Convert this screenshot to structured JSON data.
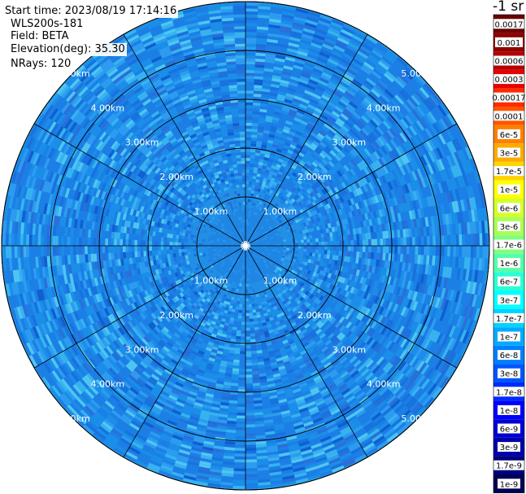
{
  "info": {
    "start_time": "Start time: 2023/08/19 17:14:16",
    "device": "WLS200s-181",
    "field": "Field: BETA",
    "elevation": "Elevation(deg): 35.30",
    "nrays": "NRays: 120"
  },
  "colorbar": {
    "units": "-1 sr",
    "labels": [
      "0.0017",
      "0.001",
      "0.0006",
      "0.0003",
      "0.00017",
      "0.0001",
      "6e-5",
      "3e-5",
      "1.7e-5",
      "1e-5",
      "6e-6",
      "3e-6",
      "1.7e-6",
      "1e-6",
      "6e-7",
      "3e-7",
      "1.7e-7",
      "1e-7",
      "6e-8",
      "3e-8",
      "1.7e-8",
      "1e-8",
      "6e-9",
      "3e-9",
      "1.7e-9",
      "1e-9"
    ],
    "colors": [
      "#6a0000",
      "#8f0000",
      "#b40000",
      "#e60000",
      "#ff2a00",
      "#ff5500",
      "#ff7f00",
      "#ffaa00",
      "#ffd400",
      "#ffff00",
      "#d4ff2a",
      "#aaff55",
      "#7fff7f",
      "#55ffaa",
      "#2affd4",
      "#00ffff",
      "#00d4ff",
      "#00aaff",
      "#007fff",
      "#0055ff",
      "#002aff",
      "#0000ff",
      "#0000d4",
      "#0000aa",
      "#00007f",
      "#000055"
    ]
  },
  "chart_data": {
    "type": "heatmap",
    "projection": "polar (PPI scan)",
    "field": "BETA",
    "units": "-1 sr",
    "range_rings_km": [
      1,
      2,
      3,
      4,
      5
    ],
    "range_ring_labels": [
      "1.00km",
      "2.00km",
      "3.00km",
      "4.00km",
      "5.00km"
    ],
    "max_range_km": 5.0,
    "azimuth_spokes_deg": [
      0,
      30,
      60,
      90,
      120,
      150,
      180,
      210,
      240,
      270,
      300,
      330
    ],
    "n_rays": 120,
    "elevation_deg": 35.3,
    "dominant_value_range": [
      "6e-8",
      "1.7e-7"
    ],
    "near_range_value": "6e-8"
  }
}
